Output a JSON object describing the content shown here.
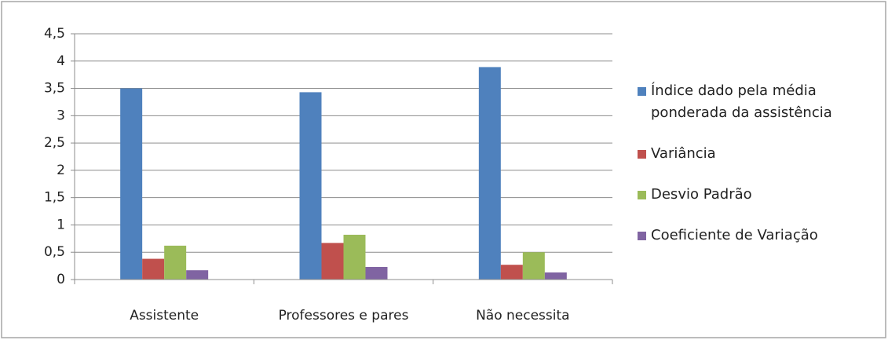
{
  "chart_data": {
    "type": "bar",
    "categories": [
      "Assistente",
      "Professores e pares",
      "Não necessita"
    ],
    "series": [
      {
        "name": "Índice dado pela média ponderada da assistência",
        "color": "#4f81bd",
        "values": [
          3.5,
          3.43,
          3.89
        ]
      },
      {
        "name": "Variância",
        "color": "#c0504d",
        "values": [
          0.38,
          0.67,
          0.27
        ]
      },
      {
        "name": "Desvio Padrão",
        "color": "#9bbb59",
        "values": [
          0.62,
          0.82,
          0.5
        ]
      },
      {
        "name": "Coeficiente de Variação",
        "color": "#8064a2",
        "values": [
          0.17,
          0.23,
          0.13
        ]
      }
    ],
    "ylim": [
      0,
      4.5
    ],
    "yticks": [
      0,
      {
        "value": 0.5,
        "label": "0,5"
      },
      1,
      {
        "value": 1.5,
        "label": "1,5"
      },
      2,
      {
        "value": 2.5,
        "label": "2,5"
      },
      3,
      {
        "value": 3.5,
        "label": "3,5"
      },
      4,
      {
        "value": 4.5,
        "label": "4,5"
      }
    ],
    "grid": true,
    "legend": "right"
  }
}
